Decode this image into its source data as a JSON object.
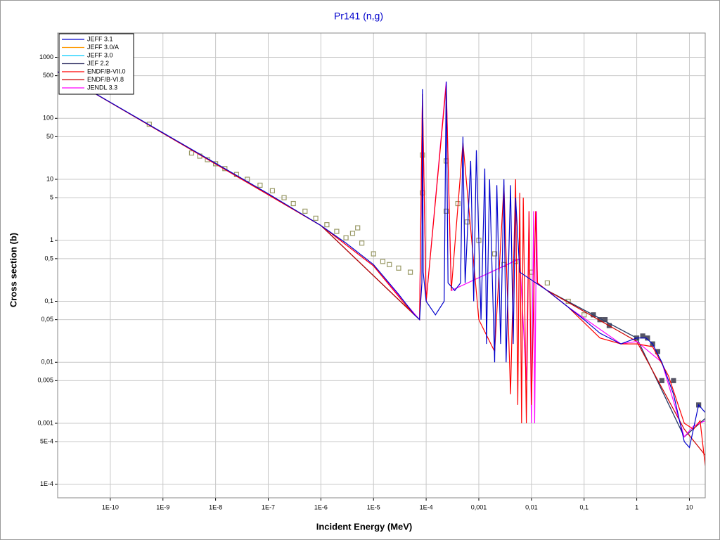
{
  "chart_data": {
    "type": "line",
    "title": "Pr141 (n,g)",
    "x_label": "Incident Energy (MeV)",
    "y_label": "Cross section (b)",
    "log_x": true,
    "log_y": true,
    "grid": true,
    "legend": "top-left",
    "xlim": [
      1e-11,
      20
    ],
    "ylim": [
      6e-05,
      2500
    ],
    "xticks": [
      {
        "value": 1e-10,
        "label": "1E-10"
      },
      {
        "value": 1e-09,
        "label": "1E-9"
      },
      {
        "value": 1e-08,
        "label": "1E-8"
      },
      {
        "value": 1e-07,
        "label": "1E-7"
      },
      {
        "value": 1e-06,
        "label": "1E-6"
      },
      {
        "value": 1e-05,
        "label": "1E-5"
      },
      {
        "value": 0.0001,
        "label": "1E-4"
      },
      {
        "value": 0.001,
        "label": "0,001"
      },
      {
        "value": 0.01,
        "label": "0,01"
      },
      {
        "value": 0.1,
        "label": "0,1"
      },
      1,
      10
    ],
    "yticks": [
      1000,
      500,
      100,
      50,
      10,
      5,
      1,
      {
        "value": 0.5,
        "label": "0,5"
      },
      {
        "value": 0.1,
        "label": "0,1"
      },
      {
        "value": 0.05,
        "label": "0,05"
      },
      {
        "value": 0.01,
        "label": "0,01"
      },
      {
        "value": 0.005,
        "label": "0,005"
      },
      {
        "value": 0.001,
        "label": "0,001"
      },
      {
        "value": 0.0005,
        "label": "5E-4"
      },
      {
        "value": 0.0001,
        "label": "1E-4"
      }
    ],
    "series": [
      {
        "name": "JEFF 3.1",
        "color": "#0000cc",
        "x": [
          1e-11,
          1e-10,
          1e-09,
          1e-08,
          1e-07,
          1e-06,
          3e-06,
          1e-05,
          3e-05,
          6e-05,
          7.5e-05,
          8.3e-05,
          8.5e-05,
          8.8e-05,
          0.0001,
          0.00015,
          0.00022,
          0.00024,
          0.00026,
          0.00035,
          0.00045,
          0.0005,
          0.00055,
          0.0007,
          0.0008,
          0.0009,
          0.0011,
          0.0013,
          0.0014,
          0.0016,
          0.002,
          0.0022,
          0.0026,
          0.003,
          0.0033,
          0.004,
          0.0045,
          0.005,
          0.006,
          0.02,
          0.05,
          0.1,
          0.2,
          0.5,
          1,
          1.5,
          2,
          3,
          5,
          8,
          10,
          15,
          20
        ],
        "values": [
          580,
          183,
          58,
          18.3,
          5.8,
          1.75,
          0.9,
          0.4,
          0.13,
          0.06,
          0.05,
          0.2,
          300,
          0.3,
          0.1,
          0.06,
          0.1,
          400,
          0.2,
          0.15,
          0.2,
          50,
          0.2,
          20,
          0.1,
          30,
          0.05,
          15,
          0.02,
          10,
          0.01,
          8,
          0.02,
          10,
          0.01,
          8,
          0.02,
          5,
          0.3,
          0.15,
          0.08,
          0.05,
          0.03,
          0.02,
          0.025,
          0.025,
          0.02,
          0.01,
          0.003,
          0.0005,
          0.0004,
          0.002,
          0.0015
        ]
      },
      {
        "name": "JEFF 3.0/A",
        "color": "#ff9900",
        "x": [
          1e-11,
          1e-06,
          6e-05,
          0.0001,
          0.02,
          1,
          8,
          20
        ],
        "values": [
          580,
          1.75,
          0.06,
          null,
          0.15,
          0.025,
          0.0006,
          0.0012
        ]
      },
      {
        "name": "JEFF 3.0",
        "color": "#00ccff",
        "x": [
          1e-11,
          1e-06,
          6e-05,
          0.0001,
          0.02,
          1,
          8,
          20
        ],
        "values": [
          580,
          1.75,
          0.06,
          null,
          0.15,
          0.025,
          0.0006,
          0.0012
        ]
      },
      {
        "name": "JEF 2.2",
        "color": "#333366",
        "x": [
          1e-11,
          1e-06,
          6e-05,
          0.0001,
          0.02,
          1,
          8,
          20
        ],
        "values": [
          580,
          1.75,
          0.06,
          null,
          0.15,
          0.025,
          0.0006,
          0.0012
        ]
      },
      {
        "name": "ENDF/B-VII.0",
        "color": "#ff0000",
        "x": [
          1e-11,
          1e-06,
          1e-05,
          5e-05,
          7.5e-05,
          8.5e-05,
          0.0001,
          0.00024,
          0.0003,
          0.0005,
          0.001,
          0.002,
          0.003,
          0.004,
          0.005,
          0.0055,
          0.006,
          0.0065,
          0.007,
          0.008,
          0.009,
          0.01,
          0.012,
          0.013,
          0.05,
          0.2,
          0.5,
          1,
          2,
          4,
          8,
          12,
          16,
          20
        ],
        "values": [
          580,
          1.75,
          0.38,
          0.07,
          0.05,
          250,
          0.1,
          350,
          0.15,
          40,
          0.05,
          0.015,
          8,
          0.003,
          10,
          0.002,
          6,
          0.001,
          5,
          0.001,
          3,
          0.002,
          3,
          0.2,
          0.08,
          0.025,
          0.02,
          0.02,
          0.018,
          0.006,
          0.001,
          0.0008,
          0.0011,
          0.0002
        ]
      },
      {
        "name": "ENDF/B-VI.8",
        "color": "#cc0000",
        "x": [
          1e-11,
          1e-06,
          6e-05,
          0.0001,
          0.02,
          1,
          8,
          20
        ],
        "values": [
          580,
          1.75,
          0.06,
          null,
          0.15,
          0.022,
          0.0008,
          0.0003
        ]
      },
      {
        "name": "JENDL 3.3",
        "color": "#ff00ff",
        "x": [
          1e-11,
          1e-06,
          1e-05,
          7.5e-05,
          8.5e-05,
          0.0001,
          0.00024,
          0.0003,
          0.006,
          0.008,
          0.009,
          0.01,
          0.011,
          0.0115,
          0.0125,
          0.013,
          0.05,
          0.5,
          1,
          3,
          8,
          12,
          20
        ],
        "values": [
          580,
          1.75,
          0.38,
          0.05,
          250,
          0.1,
          400,
          0.15,
          0.5,
          0.005,
          3,
          0.001,
          3,
          0.001,
          3,
          0.2,
          0.08,
          0.02,
          0.022,
          0.01,
          0.0006,
          0.0009,
          0.0011
        ]
      }
    ],
    "points": {
      "color": "#999966",
      "x": [
        5.5e-10,
        3.5e-09,
        5e-09,
        7e-09,
        1e-08,
        1.5e-08,
        2.5e-08,
        4e-08,
        7e-08,
        1.2e-07,
        2e-07,
        3e-07,
        5e-07,
        8e-07,
        1.3e-06,
        2e-06,
        3e-06,
        4e-06,
        5e-06,
        6e-06,
        1e-05,
        1.5e-05,
        2e-05,
        3e-05,
        5e-05,
        8.5e-05,
        8.5e-05,
        0.00024,
        0.00024,
        0.0004,
        0.0006,
        0.001,
        0.002,
        0.003,
        0.005,
        0.01,
        0.02,
        0.05,
        0.1,
        0.2
      ],
      "values": [
        80,
        27,
        24,
        21,
        18,
        15,
        12,
        10,
        8,
        6.5,
        5,
        4,
        3,
        2.3,
        1.8,
        1.4,
        1.1,
        1.3,
        1.6,
        0.9,
        0.6,
        0.45,
        0.4,
        0.35,
        0.3,
        25,
        6,
        20,
        3,
        4,
        2,
        1,
        0.6,
        0.4,
        0.45,
        0.3,
        0.2,
        0.1,
        0.06,
        0.05
      ]
    },
    "points2": {
      "color": "#555566",
      "x": [
        0.15,
        0.2,
        0.25,
        0.3,
        1,
        1.3,
        1.6,
        2,
        2.5,
        3,
        5,
        15
      ],
      "values": [
        0.06,
        0.05,
        0.05,
        0.04,
        0.025,
        0.027,
        0.025,
        0.02,
        0.015,
        0.005,
        0.005,
        0.002
      ]
    }
  }
}
